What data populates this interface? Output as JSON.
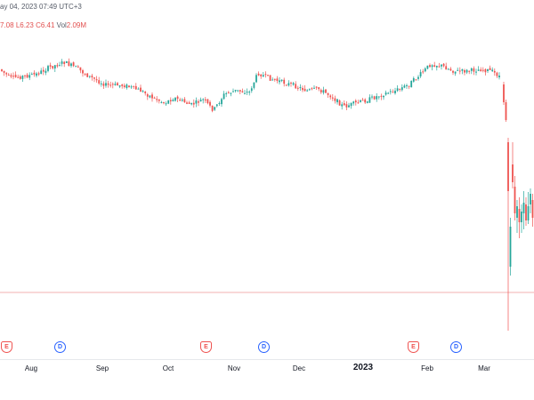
{
  "header": {
    "datetime_text": "ay 04, 2023 07:49 UTC+3",
    "ohlc": [
      {
        "label": "",
        "value": "7.08"
      },
      {
        "label": "L",
        "value": "6.23"
      },
      {
        "label": "C",
        "value": "6.41"
      },
      {
        "label": "Vol",
        "value": "2.09M"
      }
    ]
  },
  "chart_data": {
    "type": "candlestick",
    "x_ticks": [
      "Aug",
      "Sep",
      "Oct",
      "Nov",
      "Dec",
      "2023",
      "Feb",
      "Mar"
    ],
    "events": [
      {
        "type": "E",
        "position": "late Jul"
      },
      {
        "type": "D",
        "position": "early Aug"
      },
      {
        "type": "E",
        "position": "late Oct"
      },
      {
        "type": "D",
        "position": "early Nov"
      },
      {
        "type": "E",
        "position": "late Jan"
      },
      {
        "type": "D",
        "position": "early Feb"
      }
    ],
    "colors": {
      "up": "#26a69a",
      "down": "#ef5350",
      "hline": "#f3b0b0"
    },
    "grid": false
  }
}
